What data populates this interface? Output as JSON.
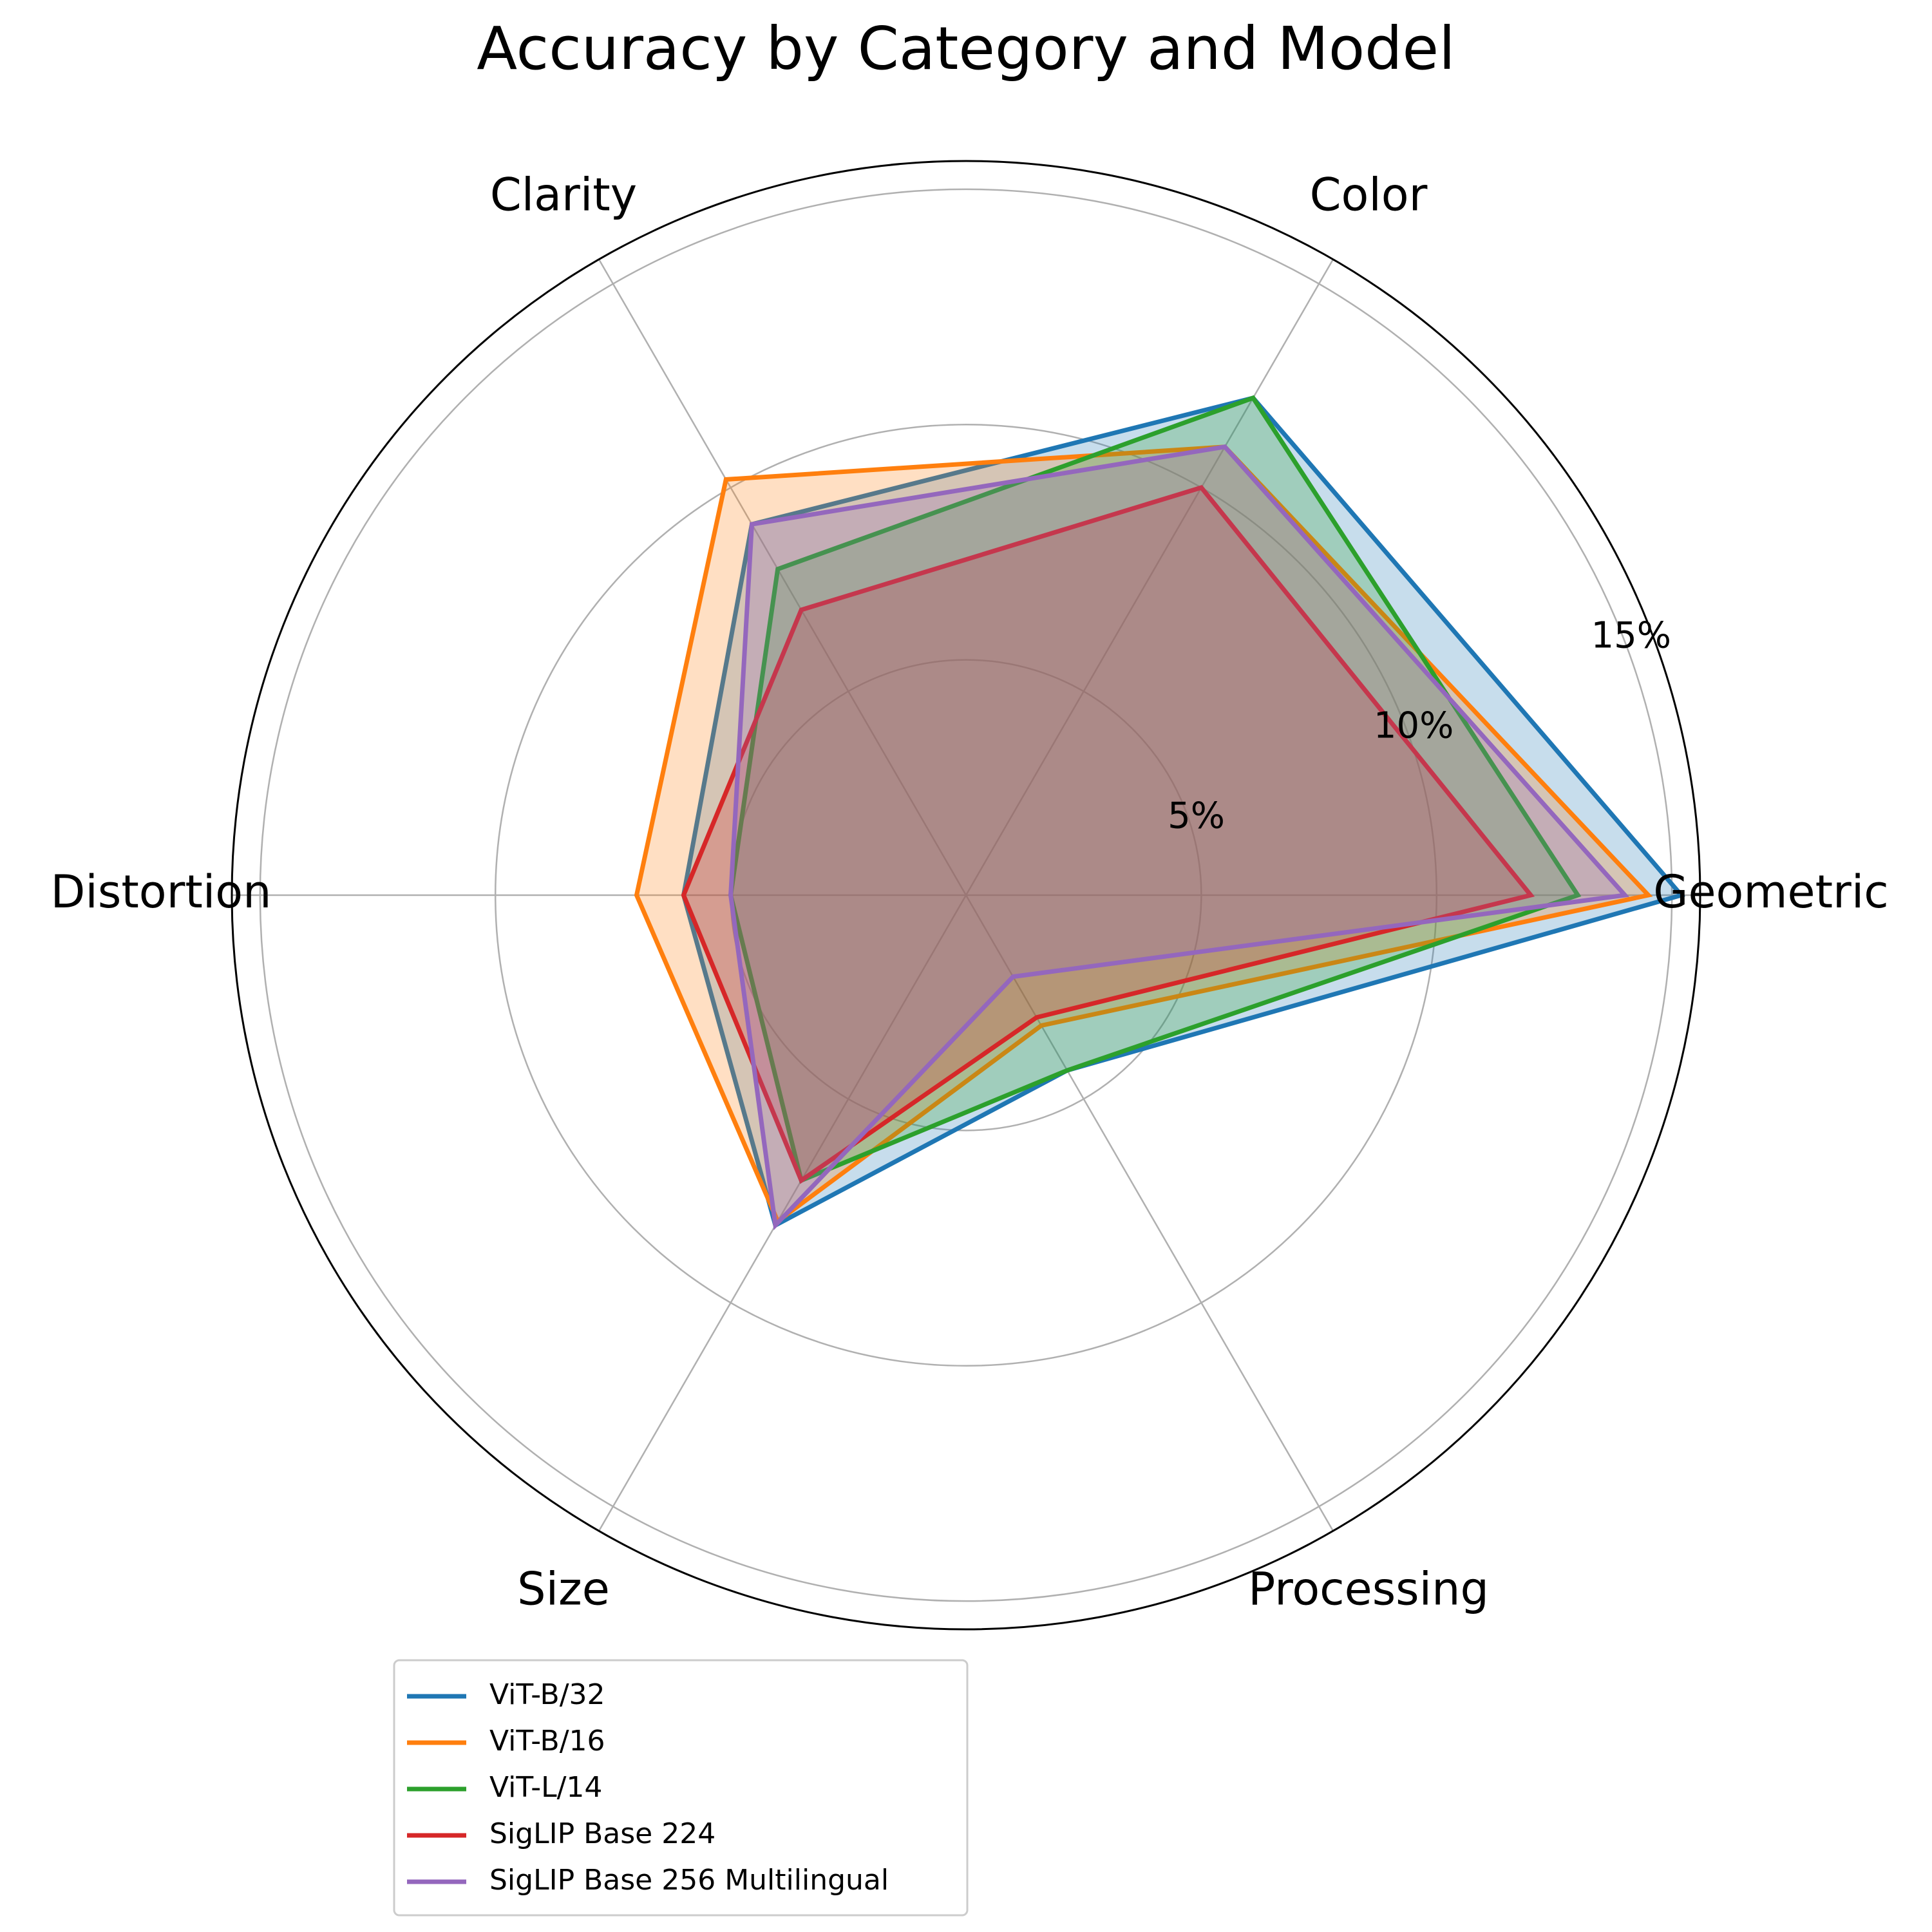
{
  "chart_data": {
    "type": "radar",
    "title": "Accuracy by Category and Model",
    "categories": [
      "Geometric",
      "Color",
      "Clarity",
      "Distortion",
      "Size",
      "Processing"
    ],
    "radial_ticks": [
      "5%",
      "10%",
      "15%"
    ],
    "radial_tick_values": [
      5,
      10,
      15
    ],
    "rmax": 15.6,
    "grid": true,
    "legend_position": "bottom",
    "series": [
      {
        "name": "ViT-B/32",
        "color": "#1f77b4",
        "values": [
          15.2,
          12.2,
          9.1,
          6.0,
          8.1,
          4.3
        ]
      },
      {
        "name": "ViT-B/16",
        "color": "#ff7f0e",
        "values": [
          14.5,
          11.0,
          10.2,
          7.0,
          8.0,
          3.2
        ]
      },
      {
        "name": "ViT-L/14",
        "color": "#2ca02c",
        "values": [
          13.0,
          12.2,
          8.0,
          5.0,
          7.0,
          4.3
        ]
      },
      {
        "name": "SigLIP Base 224",
        "color": "#d62728",
        "values": [
          12.0,
          10.0,
          7.0,
          6.0,
          7.0,
          3.0
        ]
      },
      {
        "name": "SigLIP Base 256 Multilingual",
        "color": "#9467bd",
        "values": [
          14.0,
          11.0,
          9.1,
          5.0,
          8.1,
          2.0
        ]
      }
    ]
  }
}
